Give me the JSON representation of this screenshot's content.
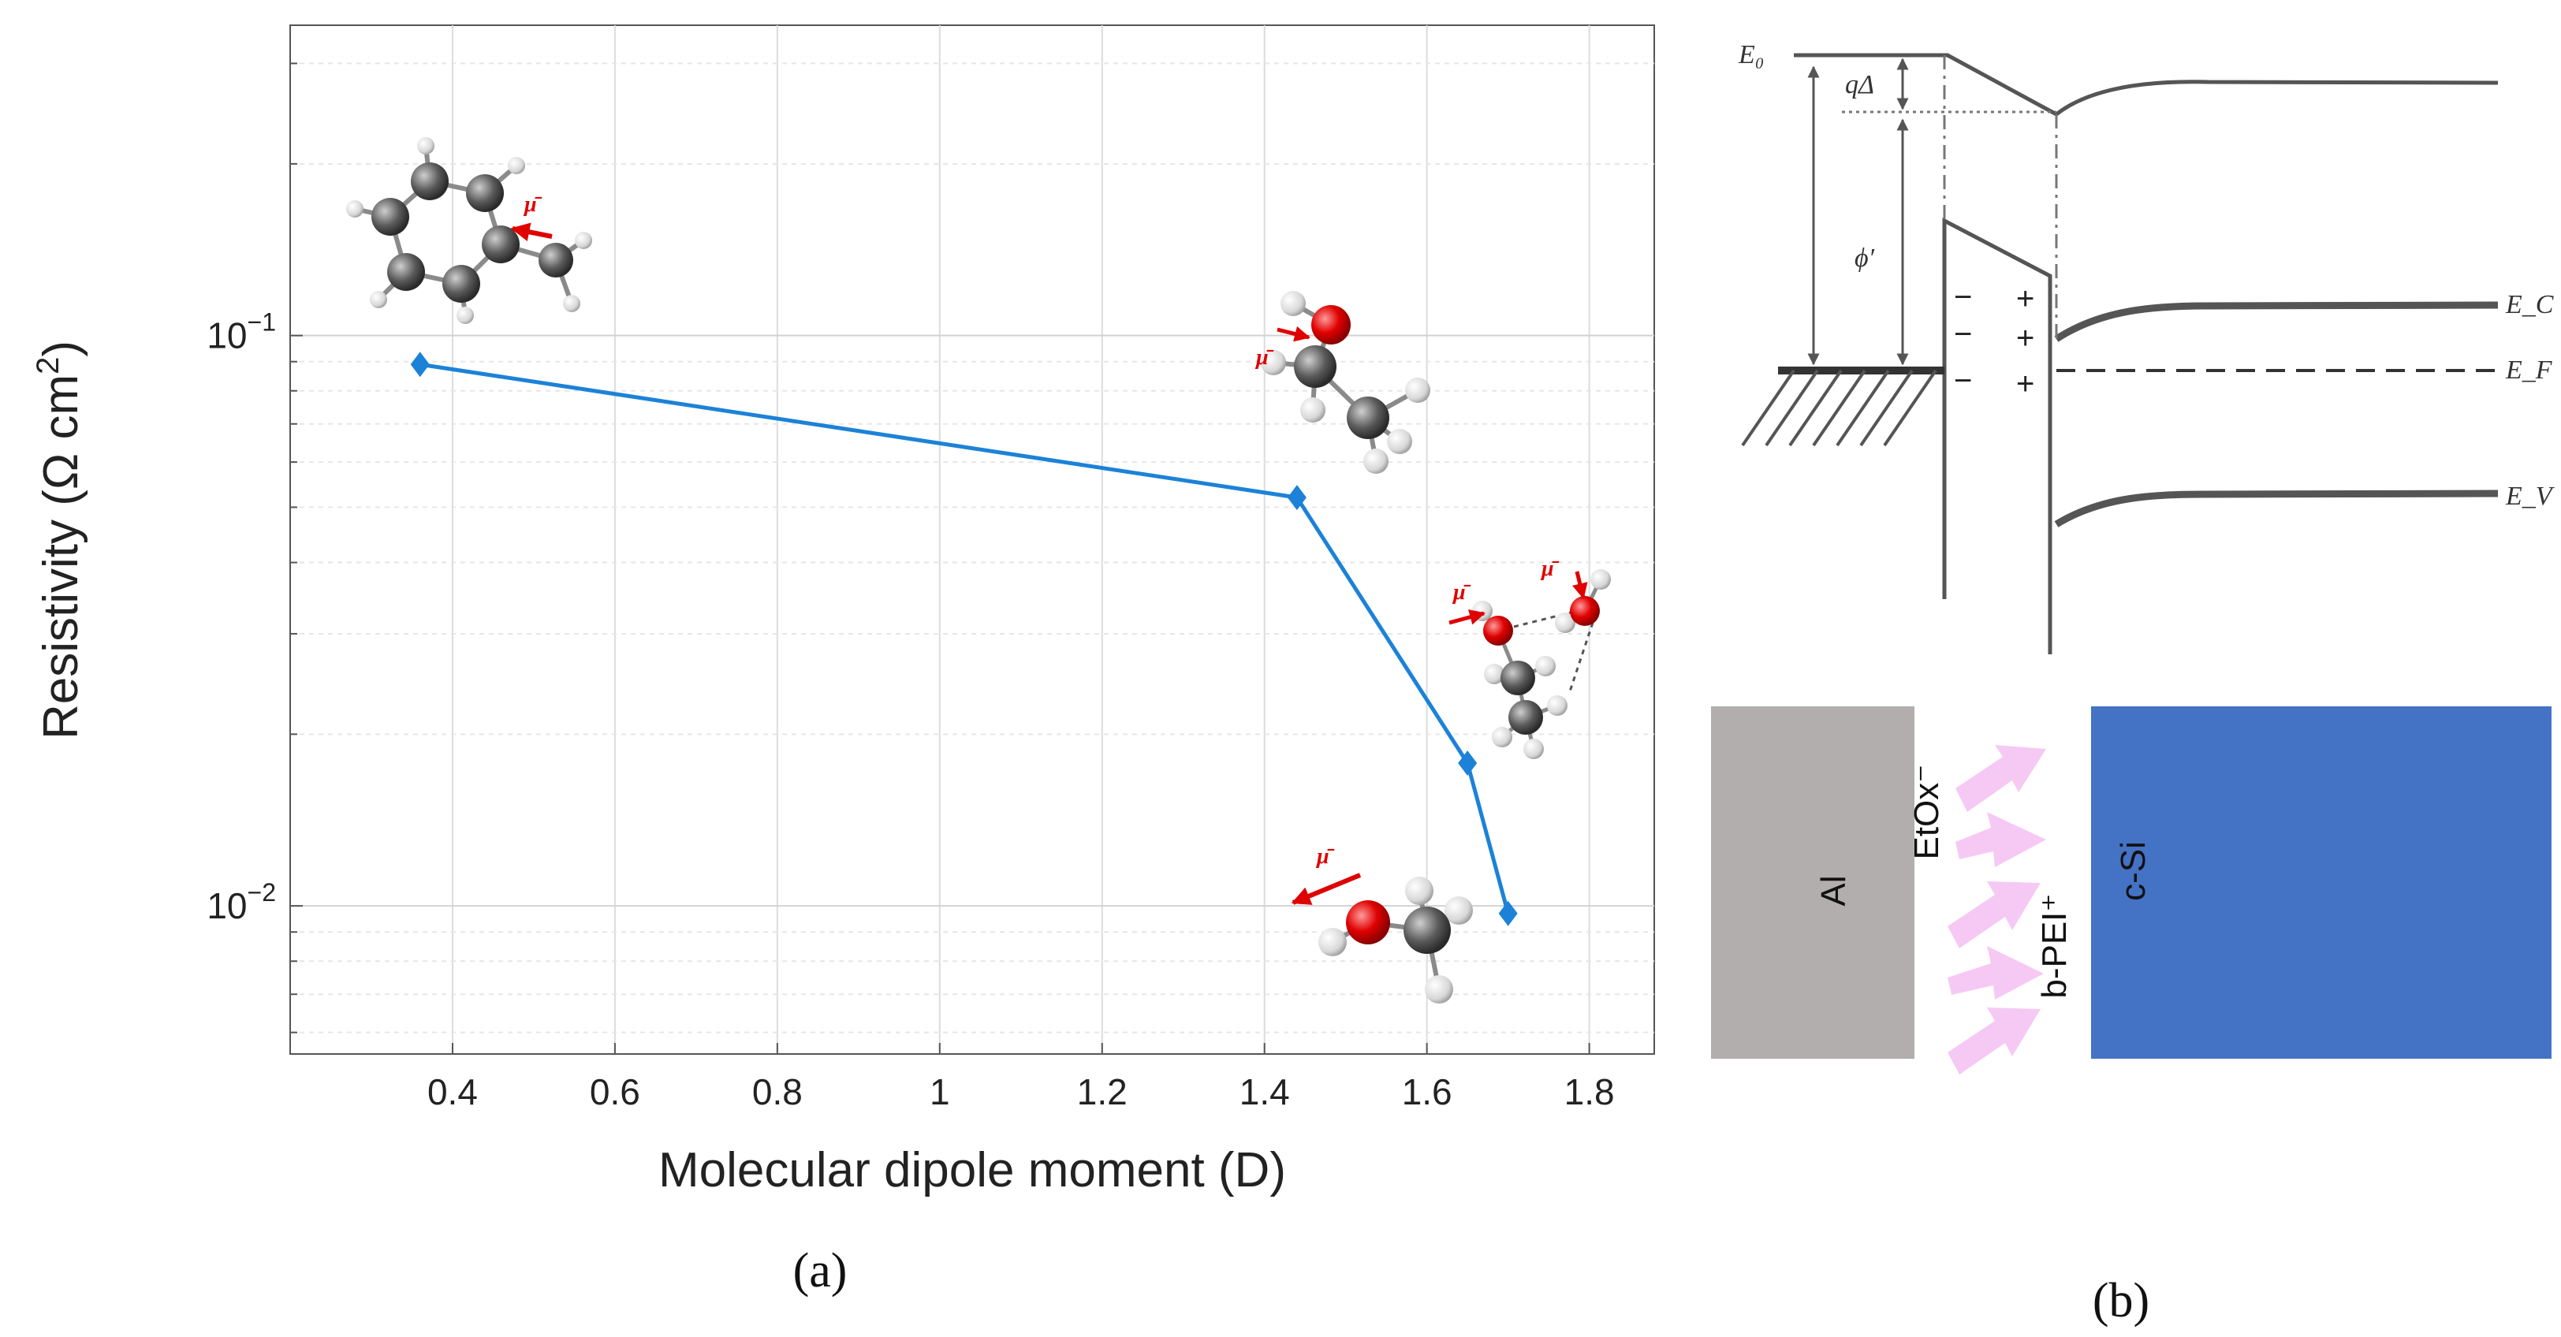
{
  "chart_data": {
    "type": "line",
    "yscale": "log",
    "xlabel": "Molecular dipole moment (D)",
    "ylabel_main": "Resistivity (Ω cm",
    "ylabel_sup": "2",
    "ylabel_end": ")",
    "xlim": [
      0.2,
      1.88
    ],
    "ylim": [
      0.0055,
      0.35
    ],
    "x_ticks": [
      0.4,
      0.6,
      0.8,
      1,
      1.2,
      1.4,
      1.6,
      1.8
    ],
    "x_tick_labels": [
      "0.4",
      "0.6",
      "0.8",
      "1",
      "1.2",
      "1.4",
      "1.6",
      "1.8"
    ],
    "y_ticks": [
      {
        "value": 0.1,
        "base": "10",
        "exp": "−1"
      },
      {
        "value": 0.01,
        "base": "10",
        "exp": "−2"
      }
    ],
    "grid": true,
    "series": [
      {
        "color": "#1c82d8",
        "marker": "diamond",
        "x": [
          0.36,
          1.44,
          1.65,
          1.7
        ],
        "y": [
          0.089,
          0.052,
          0.0178,
          0.0097
        ]
      }
    ]
  },
  "panel_a_label": "(a)",
  "panel_b_label": "(b)",
  "dipole_symbol": "μ̄",
  "band_diagram": {
    "labels": {
      "e0": "E₀",
      "qdelta": "qΔ",
      "phi": "ϕ′",
      "ec": "E_C",
      "ef": "E_F",
      "ev": "E_V"
    },
    "minus": "−",
    "plus": "+"
  },
  "layers": {
    "al": "Al",
    "etox": "EtOx⁻",
    "bpei": "b-PEI⁺",
    "csi": "c-Si",
    "al_color": "#b1aead",
    "csi_color": "#4472c4",
    "arrow_color": "#f6c9f4"
  }
}
